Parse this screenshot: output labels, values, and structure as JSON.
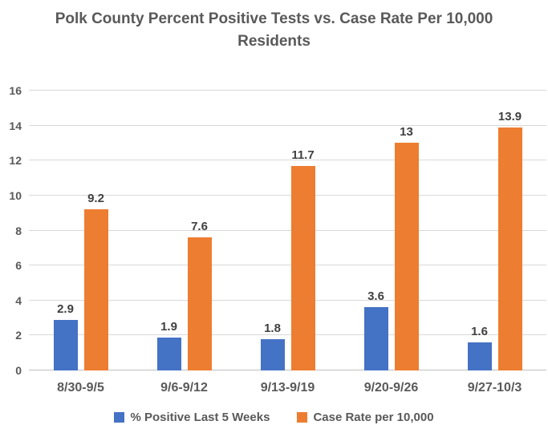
{
  "chart_data": {
    "type": "bar",
    "title": "Polk County Percent Positive Tests vs. Case Rate Per 10,000 Residents",
    "categories": [
      "8/30-9/5",
      "9/6-9/12",
      "9/13-9/19",
      "9/20-9/26",
      "9/27-10/3"
    ],
    "series": [
      {
        "name": "% Positive Last 5 Weeks",
        "color": "#4472C4",
        "values": [
          2.9,
          1.9,
          1.8,
          3.6,
          1.6
        ]
      },
      {
        "name": "Case Rate per 10,000",
        "color": "#ED7D31",
        "values": [
          9.2,
          7.6,
          11.7,
          13,
          13.9
        ]
      }
    ],
    "xlabel": "",
    "ylabel": "",
    "ylim": [
      0,
      16
    ],
    "ytick_step": 2,
    "grid": true,
    "legend_position": "bottom"
  },
  "colors": {
    "background": "#FFFFFF",
    "title_text": "#595959",
    "axis_text": "#595959",
    "data_label_text": "#404040",
    "gridline": "#D9D9D9",
    "axis_line": "#BFBFBF"
  }
}
